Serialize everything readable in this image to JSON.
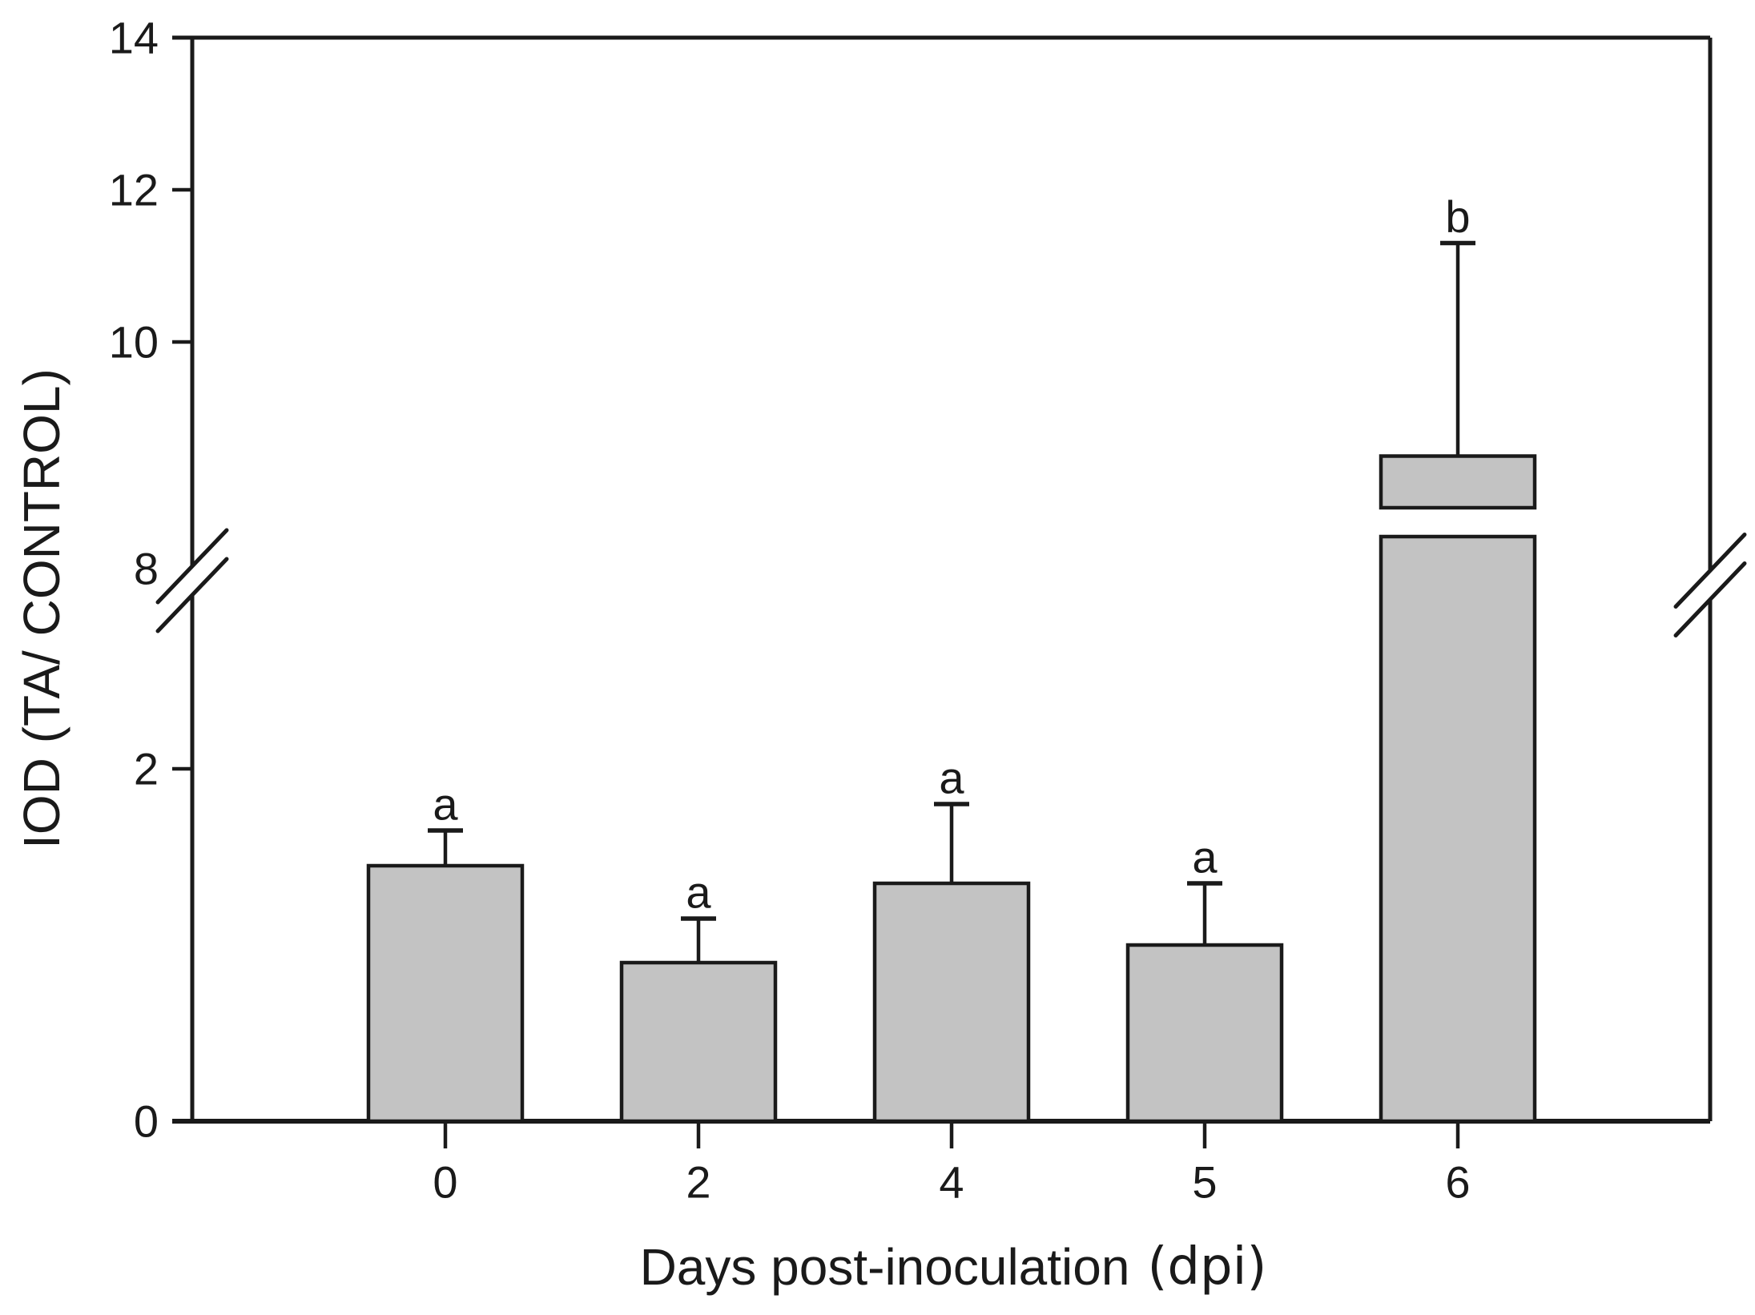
{
  "figure": {
    "background_color": "#ffffff",
    "line_color": "#1a1a1a",
    "bar_fill_color": "#c3c3c3"
  },
  "chart_data": {
    "type": "bar",
    "title": "",
    "xlabel": "Days post-inoculation",
    "xlabel_unit": "(dpi)",
    "ylabel": "IOD (TA/ CONTROL)",
    "categories": [
      "0",
      "2",
      "4",
      "5",
      "6"
    ],
    "series": [
      {
        "name": "IOD (TA/CONTROL)",
        "values": [
          1.45,
          0.9,
          1.35,
          1.0,
          8.5
        ],
        "error_plus_tops": [
          1.65,
          1.15,
          1.8,
          1.35,
          11.3
        ],
        "sig_letters": [
          "a",
          "a",
          "a",
          "a",
          "b"
        ]
      }
    ],
    "y_axis": {
      "lower_ticks": [
        {
          "label": "0",
          "value": 0
        },
        {
          "label": "2",
          "value": 2
        }
      ],
      "upper_ticks": [
        {
          "label": "10",
          "value": 10
        },
        {
          "label": "12",
          "value": 12
        },
        {
          "label": "14",
          "value": 14
        }
      ],
      "break_label": "8",
      "break_between": [
        3.1,
        6.9
      ],
      "ylim_lower_segment": [
        0,
        3.3
      ],
      "ylim_upper_segment": [
        8,
        14
      ]
    },
    "grid": false,
    "legend_position": "none"
  }
}
